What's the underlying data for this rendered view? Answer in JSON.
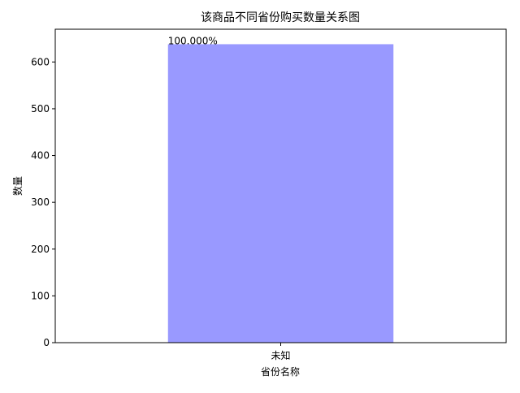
{
  "chart_data": {
    "type": "bar",
    "title": "该商品不同省份购买数量关系图",
    "xlabel": "省份名称",
    "ylabel": "数量",
    "categories": [
      "未知"
    ],
    "values": [
      638
    ],
    "value_labels": [
      "100.000%"
    ],
    "ylim": [
      0,
      670
    ],
    "yticks": [
      0,
      100,
      200,
      300,
      400,
      500,
      600
    ],
    "grid": false,
    "legend": "none",
    "bar_color": "#9999ff"
  }
}
